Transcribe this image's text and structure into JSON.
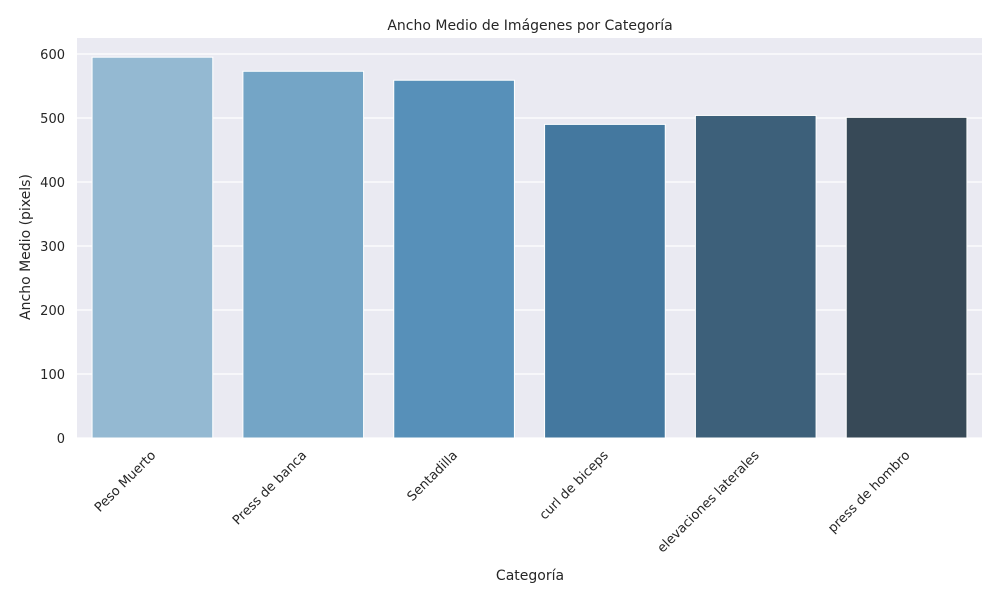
{
  "chart_data": {
    "type": "bar",
    "title": "Ancho Medio de Imágenes por Categoría",
    "xlabel": "Categoría",
    "ylabel": "Ancho Medio (pixels)",
    "categories": [
      "Peso Muerto",
      "Press de banca",
      "Sentadilla",
      "curl de biceps",
      "elevaciones laterales",
      "press de hombro"
    ],
    "values": [
      595,
      573,
      559,
      490,
      504,
      501
    ],
    "ylim": [
      0,
      625
    ],
    "yticks": [
      0,
      100,
      200,
      300,
      400,
      500,
      600
    ],
    "grid": true,
    "colors": [
      "#94b9d2",
      "#74a5c6",
      "#5790b9",
      "#44789f",
      "#3d607a",
      "#374957"
    ],
    "background": "#eaeaf2",
    "gridColor": "#ffffff"
  }
}
